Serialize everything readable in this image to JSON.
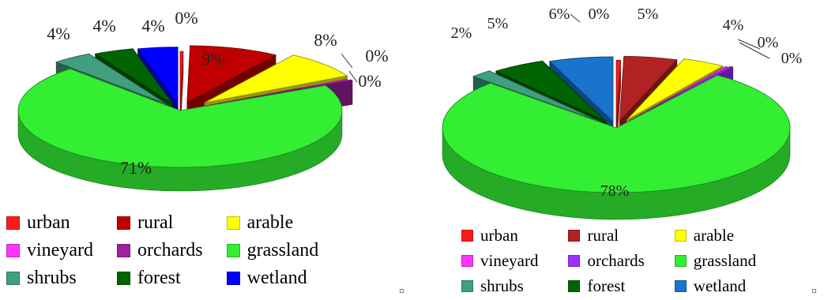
{
  "chart_data": [
    {
      "type": "pie",
      "title": "",
      "categories": [
        "urban",
        "rural",
        "arable",
        "vineyard",
        "orchards",
        "grassland",
        "shrubs",
        "forest",
        "wetland"
      ],
      "values": [
        0.3,
        9,
        8,
        0.3,
        0.3,
        71,
        4,
        4,
        4
      ],
      "data_labels": [
        "0%",
        "9%",
        "8%",
        "0%",
        "0%",
        "71%",
        "4%",
        "4%",
        "4%"
      ],
      "colors": [
        "#ff1a1a",
        "#c00000",
        "#ffff00",
        "#ff33ff",
        "#a020a0",
        "#33ee33",
        "#3f9f7f",
        "#006400",
        "#0000ff"
      ],
      "legend": "bottom",
      "style": "3d-exploded"
    },
    {
      "type": "pie",
      "title": "",
      "categories": [
        "urban",
        "rural",
        "arable",
        "vineyard",
        "orchards",
        "grassland",
        "shrubs",
        "forest",
        "wetland"
      ],
      "values": [
        0.4,
        5,
        4,
        0.3,
        0.3,
        78,
        2,
        5,
        6
      ],
      "data_labels": [
        "0%",
        "5%",
        "4%",
        "0%",
        "0%",
        "78%",
        "2%",
        "5%",
        "6%"
      ],
      "colors": [
        "#ff1a1a",
        "#b22222",
        "#ffff00",
        "#ff33ff",
        "#9b30ff",
        "#33ee33",
        "#3f9f7f",
        "#006400",
        "#1874cd"
      ],
      "legend": "bottom",
      "style": "3d-exploded"
    }
  ],
  "marks": [
    "¤",
    "¤"
  ]
}
